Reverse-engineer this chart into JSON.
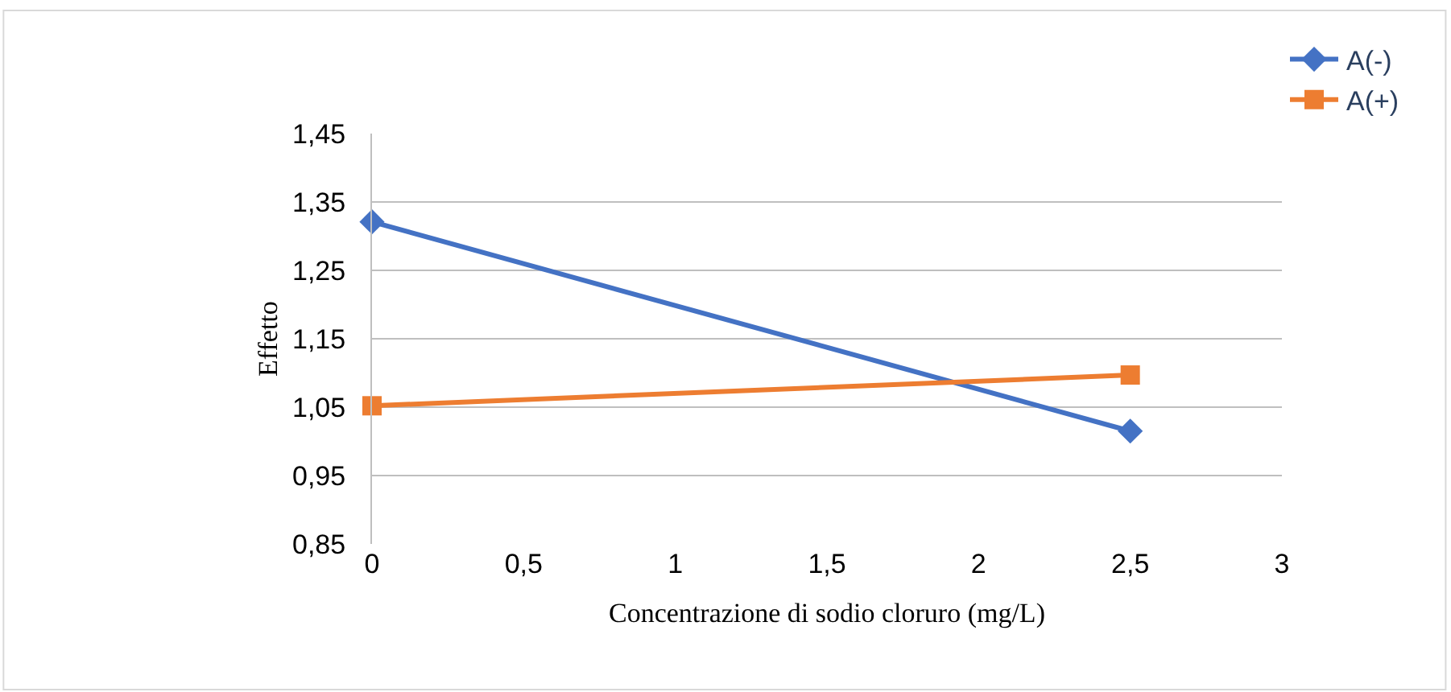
{
  "chart_data": {
    "type": "line",
    "xlabel": "Concentrazione di sodio cloruro (mg/L)",
    "ylabel": "Effetto",
    "x": [
      0,
      2.5
    ],
    "series": [
      {
        "name": "A(-)",
        "color": "#4472c4",
        "values": [
          1.321,
          1.015
        ],
        "marker": "diamond"
      },
      {
        "name": "A(+)",
        "color": "#ed7d31",
        "values": [
          1.052,
          1.097
        ],
        "marker": "square"
      }
    ],
    "xlim": [
      0,
      3
    ],
    "xticks": [
      0,
      {
        "value": 0.5,
        "label": "0,5"
      },
      1,
      {
        "value": 1.5,
        "label": "1,5"
      },
      2,
      {
        "value": 2.5,
        "label": "2,5"
      },
      3
    ],
    "ylim": [
      0.85,
      1.45
    ],
    "yticks": [
      {
        "value": 0.85,
        "label": "0,85"
      },
      {
        "value": 0.95,
        "label": "0,95"
      },
      {
        "value": 1.05,
        "label": "1,05"
      },
      {
        "value": 1.15,
        "label": "1,15"
      },
      {
        "value": 1.25,
        "label": "1,25"
      },
      {
        "value": 1.35,
        "label": "1,35"
      },
      {
        "value": 1.45,
        "label": "1,45"
      }
    ],
    "grid": "y",
    "legend": "top right",
    "line_style": "solid"
  }
}
